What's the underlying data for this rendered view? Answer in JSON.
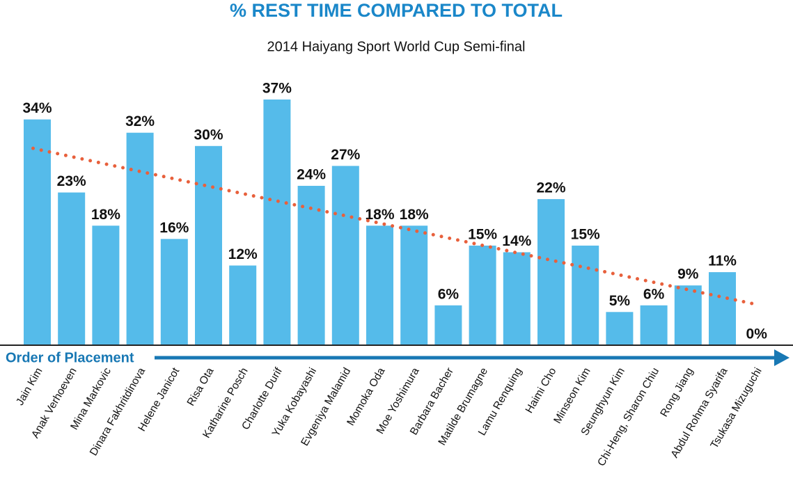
{
  "chart_data": {
    "type": "bar",
    "title": "% REST TIME COMPARED TO TOTAL",
    "subtitle": "2014 Haiyang Sport World Cup Semi-final",
    "x_label": "Order of Placement",
    "categories": [
      "Jain Kim",
      "Anak Verhoeven",
      "Mina Markovic",
      "Dinara Fakhritdinova",
      "Helene Janicot",
      "Risa Ota",
      "Katharine Posch",
      "Charlotte Durif",
      "Yuka Kobayashi",
      "Evgeniya Malamid",
      "Momoka Oda",
      "Moe Yoshimura",
      "Barbara Bacher",
      "Matilde Brumagne",
      "Lamu Renquing",
      "Haimi Cho",
      "Minseon Kim",
      "Seunghyun Kim",
      "Chi-Heng, Sharon Chiu",
      "Rong Jiang",
      "Abdul Rohma Syarifa",
      "Tsukasa Mizuguchi"
    ],
    "values": [
      34,
      23,
      18,
      32,
      16,
      30,
      12,
      37,
      24,
      27,
      18,
      18,
      6,
      15,
      14,
      22,
      15,
      5,
      6,
      9,
      11,
      0
    ],
    "value_labels": [
      "34%",
      "23%",
      "18%",
      "32%",
      "16%",
      "30%",
      "12%",
      "37%",
      "24%",
      "27%",
      "18%",
      "18%",
      "6%",
      "15%",
      "14%",
      "22%",
      "15%",
      "5%",
      "6%",
      "9%",
      "11%",
      "0%"
    ],
    "color": "#55bbea",
    "trendline": true,
    "trendline_color": "#e8603c"
  }
}
